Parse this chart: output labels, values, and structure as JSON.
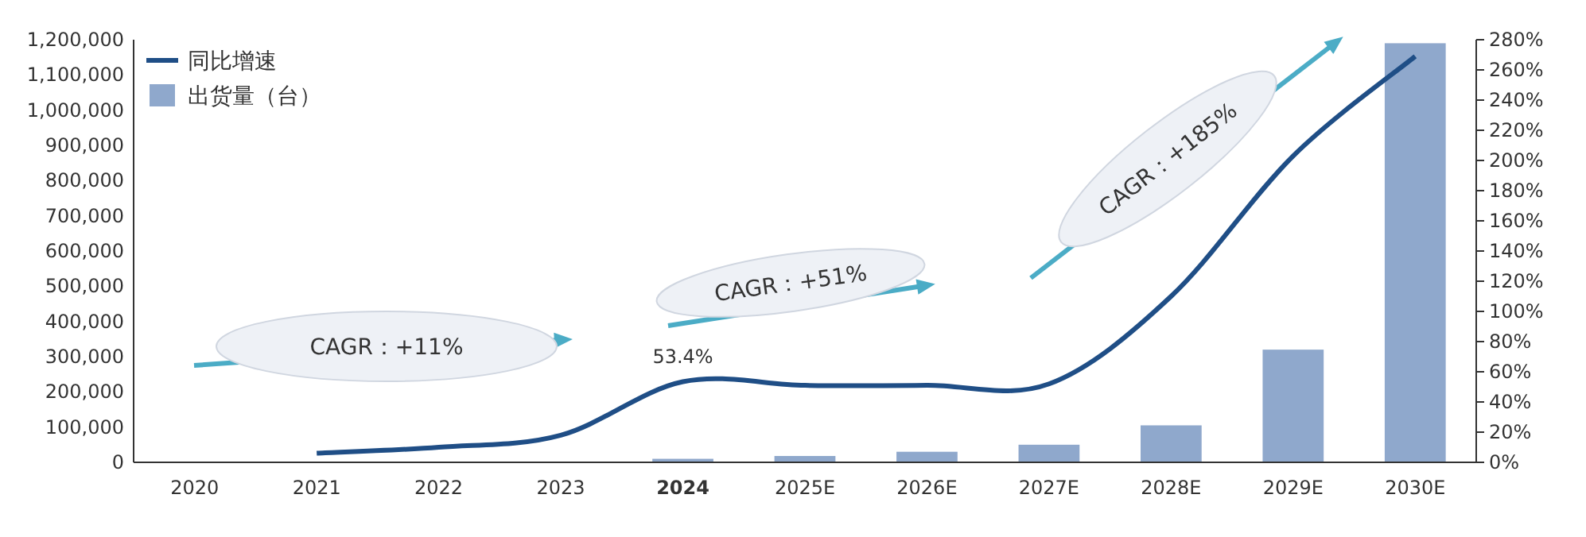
{
  "chart_data": {
    "type": "bar",
    "categories": [
      "2020",
      "2021",
      "2022",
      "2023",
      "**2024**",
      "2025E",
      "2026E",
      "2027E",
      "2028E",
      "2029E",
      "2030E"
    ],
    "series": [
      {
        "name": "出货量（台）",
        "color": "#8fa8cc",
        "values": [
          null,
          null,
          null,
          null,
          10000,
          18000,
          30000,
          50000,
          105000,
          320000,
          1190000
        ]
      },
      {
        "name": "同比增速",
        "type": "line",
        "axis": "y2",
        "color": "#1f4e86",
        "values": [
          null,
          6,
          10,
          18,
          53.4,
          51,
          51,
          52,
          110,
          203,
          269
        ],
        "value_labels": [
          null,
          null,
          null,
          null,
          "53.4%",
          null,
          null,
          null,
          null,
          null,
          null
        ]
      }
    ],
    "ylim": [
      0,
      1200000
    ],
    "yticks": [
      {
        "value": 0,
        "label": "0"
      },
      {
        "value": 100000,
        "label": "100,000"
      },
      {
        "value": 200000,
        "label": "200,000"
      },
      {
        "value": 300000,
        "label": "300,000"
      },
      {
        "value": 400000,
        "label": "400,000"
      },
      {
        "value": 500000,
        "label": "500,000"
      },
      {
        "value": 600000,
        "label": "600,000"
      },
      {
        "value": 700000,
        "label": "700,000"
      },
      {
        "value": 800000,
        "label": "800,000"
      },
      {
        "value": 900000,
        "label": "900,000"
      },
      {
        "value": 1000000,
        "label": "1,000,000"
      },
      {
        "value": 1100000,
        "label": "1,100,000"
      },
      {
        "value": 1200000,
        "label": "1,200,000"
      }
    ],
    "y2lim": [
      0,
      280
    ],
    "y2ticks": [
      {
        "value": 0,
        "label": "0%"
      },
      {
        "value": 20,
        "label": "20%"
      },
      {
        "value": 40,
        "label": "40%"
      },
      {
        "value": 60,
        "label": "60%"
      },
      {
        "value": 80,
        "label": "80%"
      },
      {
        "value": 100,
        "label": "100%"
      },
      {
        "value": 120,
        "label": "120%"
      },
      {
        "value": 140,
        "label": "140%"
      },
      {
        "value": 160,
        "label": "160%"
      },
      {
        "value": 180,
        "label": "180%"
      },
      {
        "value": 200,
        "label": "200%"
      },
      {
        "value": 220,
        "label": "220%"
      },
      {
        "value": 240,
        "label": "240%"
      },
      {
        "value": 260,
        "label": "260%"
      },
      {
        "value": 280,
        "label": "280%"
      }
    ],
    "annotations": [
      "CAGR：+11%",
      "CAGR：+51%",
      "CAGR：+185%"
    ],
    "legend": "top left",
    "grid": false
  }
}
